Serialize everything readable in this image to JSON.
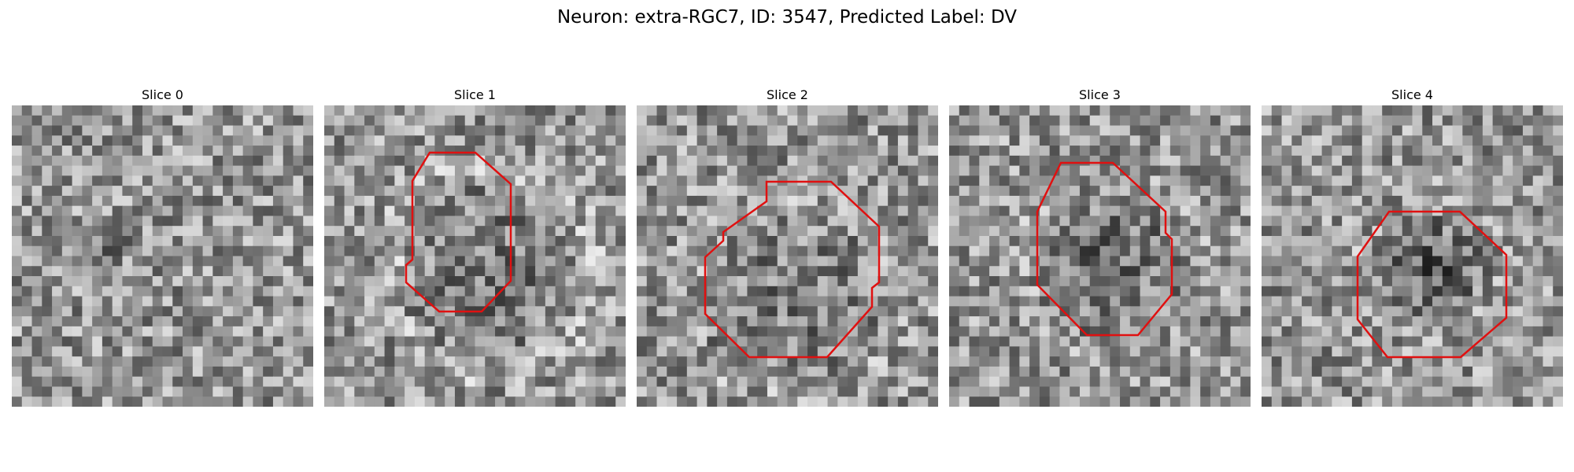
{
  "figure": {
    "title": "Neuron: extra-RGC7, ID: 3547, Predicted Label: DV"
  },
  "slices": [
    {
      "title": "Slice 0",
      "has_contour": false
    },
    {
      "title": "Slice 1",
      "has_contour": true
    },
    {
      "title": "Slice 2",
      "has_contour": true
    },
    {
      "title": "Slice 3",
      "has_contour": true
    },
    {
      "title": "Slice 4",
      "has_contour": true
    }
  ],
  "colors": {
    "contour": "#e01010",
    "background": "#ffffff"
  },
  "image_style": "grayscale noise microscopy patch"
}
